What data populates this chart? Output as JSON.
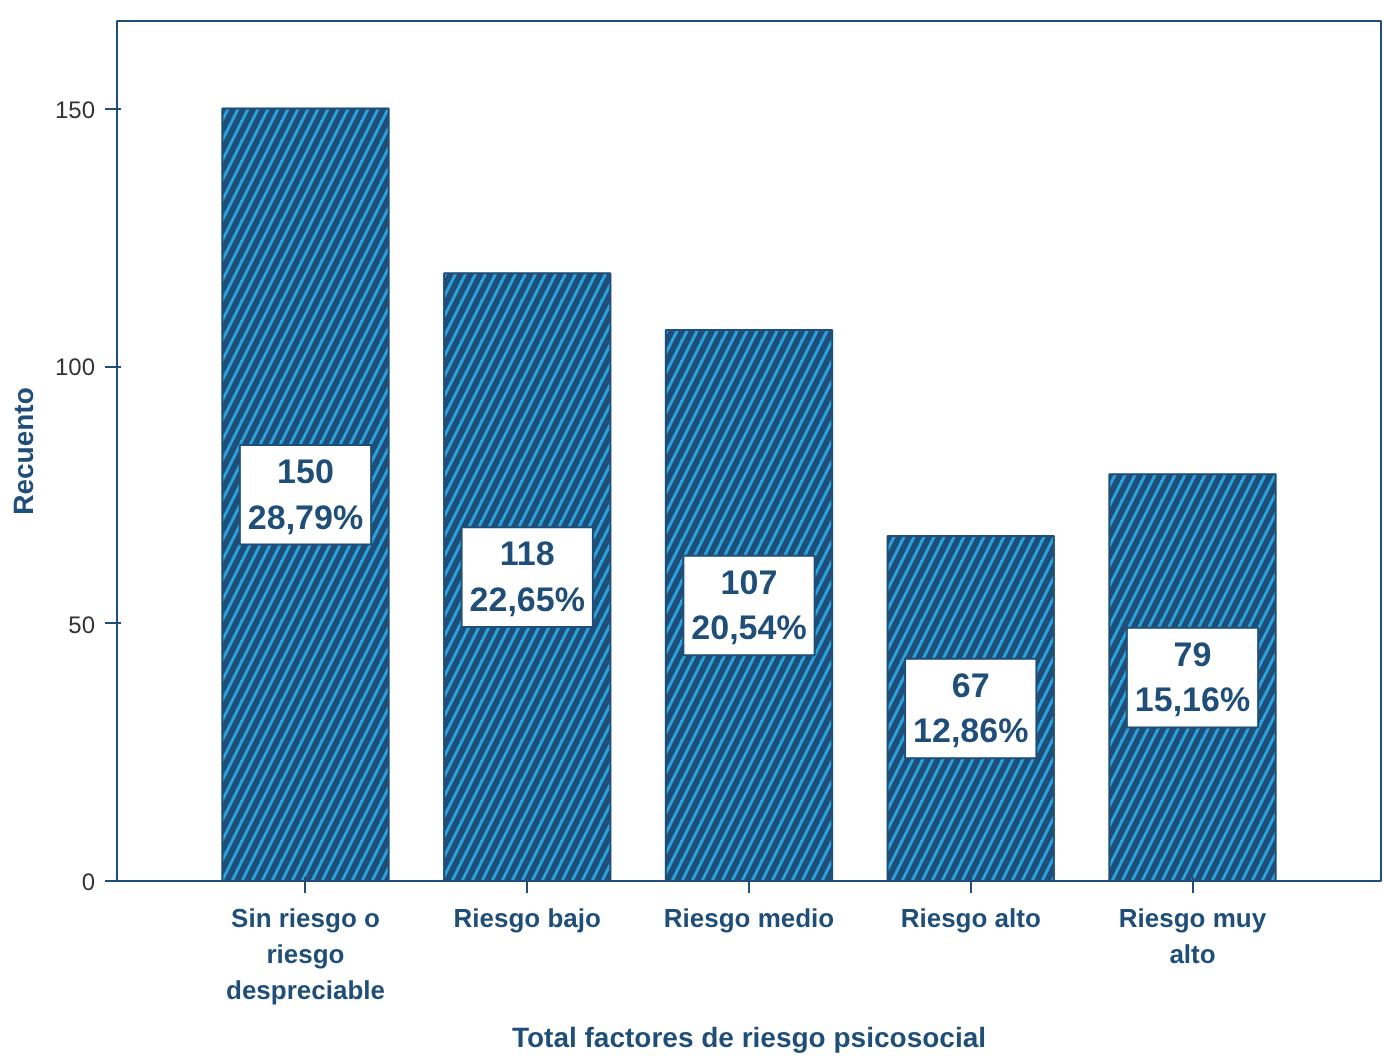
{
  "chart_data": {
    "type": "bar",
    "xlabel": "Total factores de riesgo psicosocial",
    "ylabel": "Recuento",
    "categories": [
      "Sin riesgo o riesgo despreciable",
      "Riesgo bajo",
      "Riesgo medio",
      "Riesgo alto",
      "Riesgo muy alto"
    ],
    "values": [
      150,
      118,
      107,
      67,
      79
    ],
    "color": "#29a3dc",
    "value_labels": [
      "150\n28,79%",
      "118\n22,65%",
      "107\n20,54%",
      "67\n12,86%",
      "79\n15,16%"
    ],
    "ylim": [
      0,
      167
    ],
    "yticks": [
      0,
      50,
      100,
      150
    ],
    "grid": false
  }
}
